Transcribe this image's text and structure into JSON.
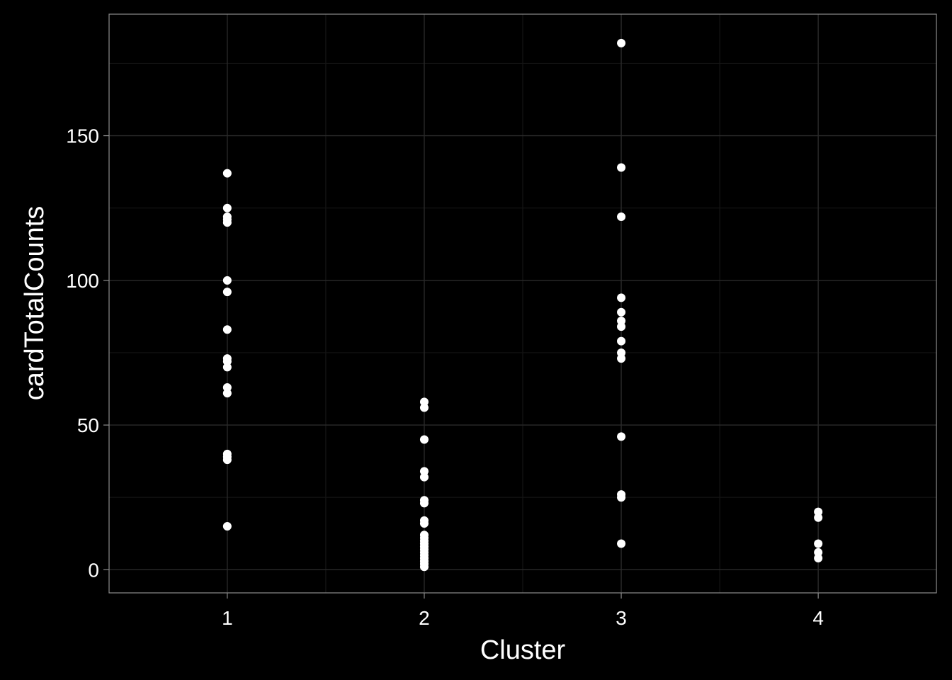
{
  "chart_data": {
    "type": "scatter",
    "title": "",
    "xlabel": "Cluster",
    "ylabel": "cardTotalCounts",
    "x_ticks": [
      "1",
      "2",
      "3",
      "4"
    ],
    "y_ticks": [
      "0",
      "50",
      "100",
      "150"
    ],
    "xlim": [
      0.4,
      4.6
    ],
    "ylim": [
      -8,
      192
    ],
    "y_tick_values": [
      0,
      50,
      100,
      150
    ],
    "y_minor_values": [
      25,
      75,
      125,
      175
    ],
    "grid": true,
    "legend": "none",
    "colors": {
      "background": "#000000",
      "panel_border": "#8c8c8c",
      "grid_major": "#2a2a2a",
      "grid_minor": "#141414",
      "points": "#ffffff",
      "text": "#ffffff"
    },
    "series": [
      {
        "points": [
          [
            1,
            137
          ],
          [
            1,
            125
          ],
          [
            1,
            122
          ],
          [
            1,
            121
          ],
          [
            1,
            120
          ],
          [
            1,
            100
          ],
          [
            1,
            96
          ],
          [
            1,
            83
          ],
          [
            1,
            73
          ],
          [
            1,
            72
          ],
          [
            1,
            70
          ],
          [
            1,
            63
          ],
          [
            1,
            61
          ],
          [
            1,
            40
          ],
          [
            1,
            39
          ],
          [
            1,
            38
          ],
          [
            1,
            15
          ],
          [
            2,
            58
          ],
          [
            2,
            56
          ],
          [
            2,
            45
          ],
          [
            2,
            34
          ],
          [
            2,
            32
          ],
          [
            2,
            24
          ],
          [
            2,
            23
          ],
          [
            2,
            17
          ],
          [
            2,
            16
          ],
          [
            2,
            12
          ],
          [
            2,
            11
          ],
          [
            2,
            10
          ],
          [
            2,
            9
          ],
          [
            2,
            8
          ],
          [
            2,
            7
          ],
          [
            2,
            6
          ],
          [
            2,
            5
          ],
          [
            2,
            4
          ],
          [
            2,
            3
          ],
          [
            2,
            2
          ],
          [
            2,
            1
          ],
          [
            3,
            182
          ],
          [
            3,
            139
          ],
          [
            3,
            122
          ],
          [
            3,
            94
          ],
          [
            3,
            89
          ],
          [
            3,
            86
          ],
          [
            3,
            84
          ],
          [
            3,
            79
          ],
          [
            3,
            75
          ],
          [
            3,
            73
          ],
          [
            3,
            46
          ],
          [
            3,
            26
          ],
          [
            3,
            25
          ],
          [
            3,
            9
          ],
          [
            4,
            20
          ],
          [
            4,
            18
          ],
          [
            4,
            9
          ],
          [
            4,
            6
          ],
          [
            4,
            4
          ]
        ]
      }
    ]
  }
}
